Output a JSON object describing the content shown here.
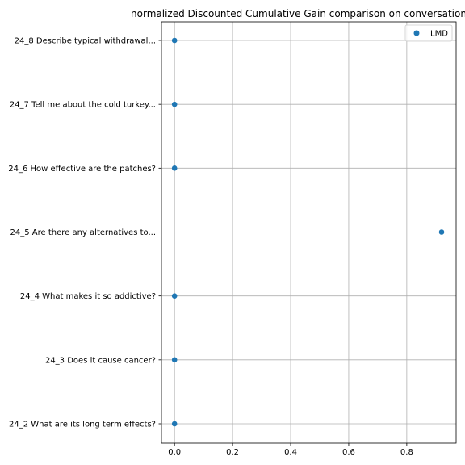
{
  "chart_data": {
    "type": "scatter",
    "title": "normalized Discounted Cumulative Gain comparison on conversation",
    "xlabel": "",
    "ylabel": "",
    "xlim": [
      -0.045,
      0.97
    ],
    "xticks": [
      "0.0",
      "0.2",
      "0.4",
      "0.6",
      "0.8"
    ],
    "categories": [
      "24_8 Describe typical withdrawal...",
      "24_7 Tell me about the cold turkey...",
      "24_6 How effective are the patches?",
      "24_5 Are there any alternatives to...",
      "24_4 What makes it so addictive?",
      "24_3 Does it cause cancer?",
      "24_2 What are its long term effects?"
    ],
    "series": [
      {
        "name": "LMD",
        "color": "#1f77b4",
        "values": [
          0.0,
          0.0,
          0.0,
          0.92,
          0.0,
          0.0,
          0.0
        ]
      }
    ],
    "grid": true,
    "legend_position": "top-right"
  }
}
